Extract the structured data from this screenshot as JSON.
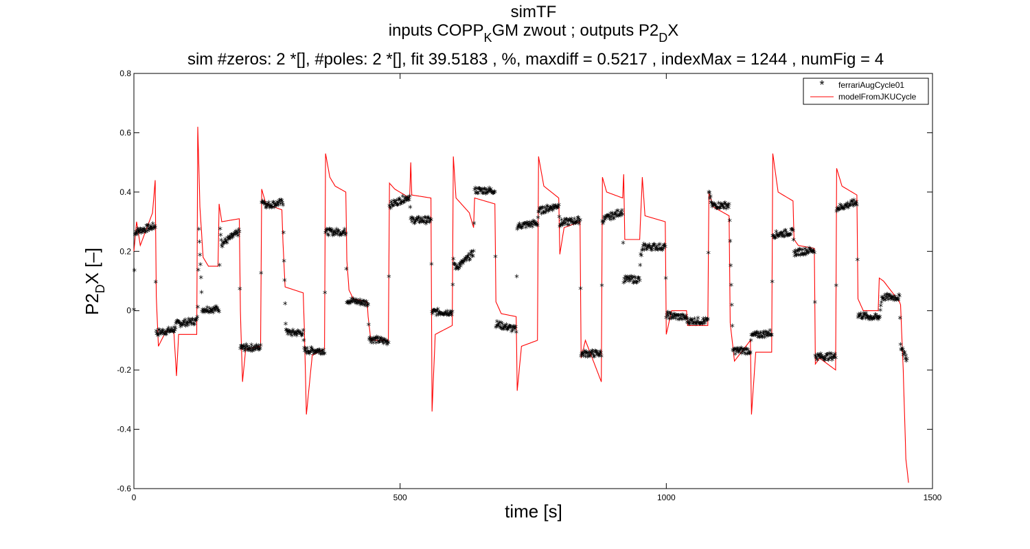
{
  "chart_data": {
    "type": "line",
    "title": {
      "line1": "simTF",
      "line2": {
        "pre": "inputs COPP",
        "sub1": "K",
        "mid": "GM zwout ; outputs P2",
        "sub2": "D",
        "post": "X"
      },
      "line3": "sim #zeros:  2 *[], #poles:  2 *[], fit  39.5183 , %, maxdiff =  0.5217 , indexMax =  1244 , numFig =  4"
    },
    "xlabel": "time [s]",
    "ylabel": {
      "pre": "P2",
      "sub": "D",
      "post": "X [–]"
    },
    "xlim": [
      0,
      1500
    ],
    "ylim": [
      -0.6,
      0.8
    ],
    "xticks": [
      0,
      500,
      1000,
      1500
    ],
    "yticks": [
      -0.6,
      -0.4,
      -0.2,
      0,
      0.2,
      0.4,
      0.6,
      0.8
    ],
    "grid": false,
    "legend_position": "top-right",
    "series": [
      {
        "name": "ferrariAugCycle01",
        "marker": "*",
        "color": "#000000",
        "segments": [
          [
            0,
            0.0
          ],
          [
            2,
            0.26
          ],
          [
            40,
            0.28
          ],
          [
            42,
            -0.08
          ],
          [
            75,
            -0.07
          ],
          [
            80,
            -0.05
          ],
          [
            118,
            -0.04
          ],
          [
            120,
            0.0
          ],
          [
            122,
            0.28
          ],
          [
            125,
            0.15
          ],
          [
            128,
            0.0
          ],
          [
            160,
            0.0
          ],
          [
            162,
            0.28
          ],
          [
            165,
            0.22
          ],
          [
            198,
            0.26
          ],
          [
            200,
            -0.13
          ],
          [
            238,
            -0.13
          ],
          [
            240,
            0.37
          ],
          [
            250,
            0.35
          ],
          [
            280,
            0.36
          ],
          [
            282,
            0.17
          ],
          [
            285,
            -0.06
          ],
          [
            290,
            -0.08
          ],
          [
            318,
            -0.08
          ],
          [
            320,
            -0.14
          ],
          [
            358,
            -0.14
          ],
          [
            360,
            0.26
          ],
          [
            398,
            0.26
          ],
          [
            400,
            0.03
          ],
          [
            440,
            0.02
          ],
          [
            442,
            -0.1
          ],
          [
            478,
            -0.11
          ],
          [
            480,
            0.35
          ],
          [
            518,
            0.38
          ],
          [
            520,
            0.3
          ],
          [
            558,
            0.3
          ],
          [
            560,
            -0.01
          ],
          [
            598,
            -0.01
          ],
          [
            600,
            0.16
          ],
          [
            605,
            0.14
          ],
          [
            620,
            0.16
          ],
          [
            638,
            0.19
          ],
          [
            640,
            0.4
          ],
          [
            678,
            0.4
          ],
          [
            680,
            -0.05
          ],
          [
            718,
            -0.07
          ],
          [
            720,
            0.28
          ],
          [
            758,
            0.29
          ],
          [
            760,
            0.33
          ],
          [
            798,
            0.35
          ],
          [
            800,
            0.29
          ],
          [
            838,
            0.3
          ],
          [
            840,
            -0.15
          ],
          [
            878,
            -0.15
          ],
          [
            880,
            0.3
          ],
          [
            918,
            0.33
          ],
          [
            920,
            0.1
          ],
          [
            950,
            0.1
          ],
          [
            952,
            0.18
          ],
          [
            958,
            0.21
          ],
          [
            998,
            0.21
          ],
          [
            1000,
            -0.02
          ],
          [
            1038,
            -0.03
          ],
          [
            1040,
            -0.04
          ],
          [
            1078,
            -0.04
          ],
          [
            1080,
            0.4
          ],
          [
            1085,
            0.35
          ],
          [
            1118,
            0.35
          ],
          [
            1120,
            0.23
          ],
          [
            1125,
            -0.14
          ],
          [
            1158,
            -0.14
          ],
          [
            1160,
            -0.09
          ],
          [
            1198,
            -0.08
          ],
          [
            1200,
            0.25
          ],
          [
            1238,
            0.26
          ],
          [
            1240,
            0.19
          ],
          [
            1278,
            0.2
          ],
          [
            1280,
            -0.16
          ],
          [
            1318,
            -0.16
          ],
          [
            1320,
            0.34
          ],
          [
            1358,
            0.36
          ],
          [
            1360,
            -0.02
          ],
          [
            1398,
            -0.03
          ],
          [
            1400,
            -0.03
          ],
          [
            1405,
            0.04
          ],
          [
            1438,
            0.04
          ],
          [
            1440,
            -0.12
          ],
          [
            1452,
            -0.17
          ]
        ]
      },
      {
        "name": "modelFromJKUCycle",
        "marker": "none",
        "color": "#ff0000",
        "segments": [
          [
            0,
            0.2
          ],
          [
            5,
            0.3
          ],
          [
            12,
            0.22
          ],
          [
            35,
            0.33
          ],
          [
            40,
            0.44
          ],
          [
            42,
            0.05
          ],
          [
            46,
            -0.12
          ],
          [
            60,
            -0.07
          ],
          [
            75,
            -0.07
          ],
          [
            80,
            -0.22
          ],
          [
            84,
            -0.08
          ],
          [
            118,
            -0.08
          ],
          [
            120,
            0.62
          ],
          [
            124,
            0.35
          ],
          [
            130,
            0.18
          ],
          [
            140,
            0.15
          ],
          [
            158,
            0.15
          ],
          [
            160,
            0.36
          ],
          [
            165,
            0.3
          ],
          [
            198,
            0.31
          ],
          [
            200,
            0.0
          ],
          [
            204,
            -0.24
          ],
          [
            210,
            -0.13
          ],
          [
            238,
            -0.12
          ],
          [
            240,
            0.41
          ],
          [
            248,
            0.36
          ],
          [
            278,
            0.34
          ],
          [
            280,
            0.23
          ],
          [
            284,
            0.08
          ],
          [
            318,
            0.06
          ],
          [
            320,
            -0.05
          ],
          [
            324,
            -0.35
          ],
          [
            335,
            -0.15
          ],
          [
            358,
            -0.13
          ],
          [
            360,
            0.53
          ],
          [
            368,
            0.45
          ],
          [
            378,
            0.42
          ],
          [
            398,
            0.4
          ],
          [
            400,
            0.17
          ],
          [
            404,
            0.07
          ],
          [
            412,
            0.04
          ],
          [
            438,
            0.03
          ],
          [
            440,
            -0.02
          ],
          [
            445,
            -0.1
          ],
          [
            478,
            -0.1
          ],
          [
            480,
            0.43
          ],
          [
            490,
            0.41
          ],
          [
            518,
            0.38
          ],
          [
            520,
            0.5
          ],
          [
            522,
            0.39
          ],
          [
            558,
            0.38
          ],
          [
            560,
            -0.34
          ],
          [
            566,
            -0.08
          ],
          [
            598,
            -0.05
          ],
          [
            600,
            0.52
          ],
          [
            605,
            0.38
          ],
          [
            630,
            0.33
          ],
          [
            638,
            0.28
          ],
          [
            640,
            0.38
          ],
          [
            678,
            0.36
          ],
          [
            680,
            0.03
          ],
          [
            690,
            -0.01
          ],
          [
            718,
            -0.02
          ],
          [
            720,
            -0.27
          ],
          [
            728,
            -0.12
          ],
          [
            758,
            -0.1
          ],
          [
            760,
            0.52
          ],
          [
            770,
            0.42
          ],
          [
            798,
            0.38
          ],
          [
            800,
            0.19
          ],
          [
            808,
            0.28
          ],
          [
            838,
            0.3
          ],
          [
            840,
            -0.16
          ],
          [
            848,
            -0.1
          ],
          [
            878,
            -0.24
          ],
          [
            880,
            0.45
          ],
          [
            888,
            0.4
          ],
          [
            918,
            0.38
          ],
          [
            920,
            0.46
          ],
          [
            922,
            0.24
          ],
          [
            950,
            0.24
          ],
          [
            955,
            0.45
          ],
          [
            960,
            0.32
          ],
          [
            998,
            0.3
          ],
          [
            1000,
            -0.08
          ],
          [
            1010,
            0.0
          ],
          [
            1038,
            0.0
          ],
          [
            1040,
            -0.05
          ],
          [
            1078,
            -0.05
          ],
          [
            1080,
            0.4
          ],
          [
            1088,
            0.35
          ],
          [
            1118,
            0.32
          ],
          [
            1120,
            -0.04
          ],
          [
            1128,
            -0.17
          ],
          [
            1158,
            -0.1
          ],
          [
            1160,
            -0.35
          ],
          [
            1168,
            -0.14
          ],
          [
            1198,
            -0.14
          ],
          [
            1200,
            0.53
          ],
          [
            1210,
            0.4
          ],
          [
            1238,
            0.37
          ],
          [
            1240,
            0.24
          ],
          [
            1248,
            0.22
          ],
          [
            1278,
            0.21
          ],
          [
            1280,
            -0.18
          ],
          [
            1288,
            -0.16
          ],
          [
            1318,
            -0.2
          ],
          [
            1320,
            0.48
          ],
          [
            1330,
            0.42
          ],
          [
            1358,
            0.39
          ],
          [
            1360,
            0.04
          ],
          [
            1370,
            0.0
          ],
          [
            1398,
            0.0
          ],
          [
            1400,
            0.11
          ],
          [
            1408,
            0.1
          ],
          [
            1438,
            0.03
          ],
          [
            1440,
            0.02
          ],
          [
            1445,
            -0.2
          ],
          [
            1450,
            -0.5
          ],
          [
            1455,
            -0.58
          ]
        ]
      }
    ]
  }
}
